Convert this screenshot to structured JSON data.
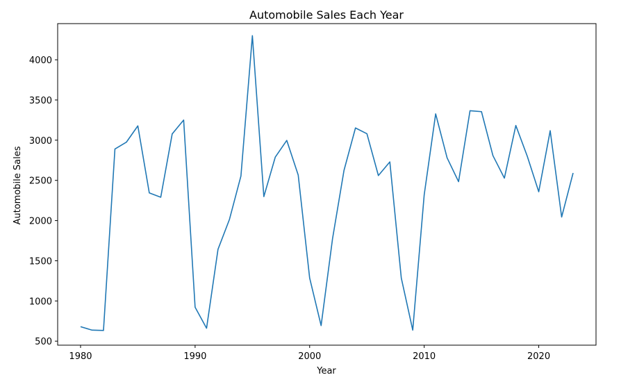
{
  "chart_data": {
    "type": "line",
    "title": "Automobile Sales Each Year",
    "xlabel": "Year",
    "ylabel": "Automobile Sales",
    "xlim": [
      1978,
      2025
    ],
    "ylim": [
      450,
      4450
    ],
    "x_ticks": [
      1980,
      1990,
      2000,
      2010,
      2020
    ],
    "y_ticks": [
      500,
      1000,
      1500,
      2000,
      2500,
      3000,
      3500,
      4000
    ],
    "grid": false,
    "series": [
      {
        "color": "#1f77b4",
        "x": [
          1980,
          1981,
          1982,
          1983,
          1984,
          1985,
          1986,
          1987,
          1988,
          1989,
          1990,
          1991,
          1992,
          1993,
          1994,
          1995,
          1996,
          1997,
          1998,
          1999,
          2000,
          2001,
          2002,
          2003,
          2004,
          2005,
          2006,
          2007,
          2008,
          2009,
          2010,
          2011,
          2012,
          2013,
          2014,
          2015,
          2016,
          2017,
          2018,
          2019,
          2020,
          2021,
          2022,
          2023
        ],
        "y": [
          680,
          637,
          633,
          2890,
          2975,
          3178,
          2344,
          2290,
          3078,
          3250,
          922,
          661,
          1643,
          2015,
          2554,
          4300,
          2298,
          2790,
          2997,
          2567,
          1285,
          694,
          1776,
          2625,
          3152,
          3080,
          2560,
          2730,
          1285,
          637,
          2320,
          3327,
          2780,
          2484,
          3366,
          3355,
          2808,
          2528,
          3183,
          2800,
          2358,
          3118,
          2044,
          2592
        ]
      }
    ]
  }
}
